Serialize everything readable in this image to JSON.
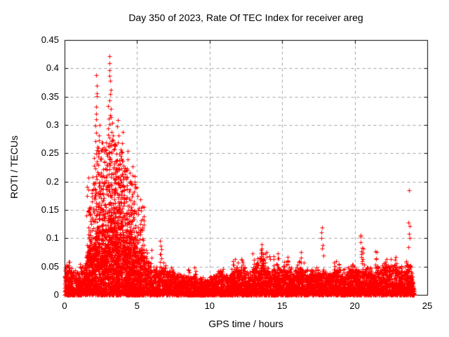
{
  "chart_data": {
    "type": "scatter",
    "title": "Day 350 of 2023, Rate Of TEC Index for receiver areg",
    "xlabel": "GPS time / hours",
    "ylabel": "ROTI / TECUs",
    "xlim": [
      0,
      25
    ],
    "ylim": [
      0,
      0.45
    ],
    "xticks": [
      0,
      5,
      10,
      15,
      20,
      25
    ],
    "xtick_labels": [
      "0",
      "5",
      "10",
      "15",
      "20",
      "25"
    ],
    "yticks": [
      0,
      0.05,
      0.1,
      0.15,
      0.2,
      0.25,
      0.3,
      0.35,
      0.4,
      0.45
    ],
    "ytick_labels": [
      "0",
      "0.05",
      "0.1",
      "0.15",
      "0.2",
      "0.25",
      "0.3",
      "0.35",
      "0.4",
      "0.45"
    ],
    "grid": {
      "show": true,
      "style": "dashed",
      "color": "#a0a0a0"
    },
    "marker": {
      "shape": "plus",
      "color": "#ff0000",
      "size": 7
    },
    "legend": "none",
    "seed": 1234,
    "x_data_end": 24.1,
    "peak_value": 0.42,
    "peak_time": 3.15,
    "density_envelope": [
      [
        0.0,
        0.5,
        0.052,
        160,
        0,
        0
      ],
      [
        0.5,
        1.0,
        0.038,
        150,
        0,
        0
      ],
      [
        1.0,
        1.5,
        0.048,
        150,
        0.06,
        5
      ],
      [
        1.5,
        2.0,
        0.085,
        230,
        0.21,
        30
      ],
      [
        2.0,
        2.5,
        0.1,
        260,
        0.26,
        60
      ],
      [
        2.5,
        3.0,
        0.11,
        260,
        0.27,
        70
      ],
      [
        3.0,
        3.5,
        0.115,
        260,
        0.28,
        80
      ],
      [
        3.5,
        4.0,
        0.115,
        260,
        0.26,
        70
      ],
      [
        4.0,
        4.5,
        0.1,
        260,
        0.23,
        60
      ],
      [
        4.5,
        5.0,
        0.09,
        260,
        0.2,
        50
      ],
      [
        5.0,
        5.5,
        0.075,
        230,
        0.16,
        30
      ],
      [
        5.5,
        6.0,
        0.055,
        170,
        0.08,
        10
      ],
      [
        6.0,
        6.5,
        0.048,
        150,
        0,
        0
      ],
      [
        6.5,
        7.0,
        0.05,
        150,
        0,
        0
      ],
      [
        7.0,
        7.5,
        0.042,
        150,
        0,
        0
      ],
      [
        7.5,
        8.0,
        0.036,
        150,
        0,
        0
      ],
      [
        8.0,
        8.5,
        0.032,
        150,
        0,
        0
      ],
      [
        8.5,
        9.0,
        0.033,
        150,
        0.05,
        4
      ],
      [
        9.0,
        9.5,
        0.028,
        150,
        0,
        0
      ],
      [
        9.5,
        10.0,
        0.027,
        150,
        0,
        0
      ],
      [
        10.0,
        10.5,
        0.032,
        150,
        0,
        0
      ],
      [
        10.5,
        11.0,
        0.038,
        150,
        0.05,
        4
      ],
      [
        11.0,
        11.5,
        0.037,
        150,
        0,
        0
      ],
      [
        11.5,
        12.0,
        0.042,
        150,
        0.06,
        5
      ],
      [
        12.0,
        12.5,
        0.043,
        150,
        0.06,
        5
      ],
      [
        12.5,
        13.0,
        0.038,
        150,
        0,
        0
      ],
      [
        13.0,
        13.5,
        0.048,
        150,
        0.07,
        8
      ],
      [
        13.5,
        14.0,
        0.052,
        150,
        0.08,
        8
      ],
      [
        14.0,
        14.5,
        0.046,
        150,
        0.07,
        5
      ],
      [
        14.5,
        15.0,
        0.042,
        150,
        0.065,
        4
      ],
      [
        15.0,
        15.5,
        0.046,
        150,
        0.065,
        4
      ],
      [
        15.5,
        16.0,
        0.042,
        150,
        0,
        0
      ],
      [
        16.0,
        16.5,
        0.046,
        150,
        0.06,
        4
      ],
      [
        16.5,
        17.0,
        0.04,
        150,
        0,
        0
      ],
      [
        17.0,
        17.5,
        0.042,
        150,
        0.055,
        3
      ],
      [
        17.5,
        18.0,
        0.04,
        150,
        0,
        0
      ],
      [
        18.0,
        18.5,
        0.04,
        150,
        0,
        0
      ],
      [
        18.5,
        19.0,
        0.045,
        150,
        0.06,
        4
      ],
      [
        19.0,
        19.5,
        0.04,
        150,
        0,
        0
      ],
      [
        19.5,
        20.0,
        0.046,
        150,
        0.055,
        3
      ],
      [
        20.0,
        20.5,
        0.046,
        150,
        0,
        0
      ],
      [
        20.5,
        21.0,
        0.042,
        150,
        0,
        0
      ],
      [
        21.0,
        21.5,
        0.04,
        150,
        0.055,
        3
      ],
      [
        21.5,
        22.0,
        0.046,
        150,
        0,
        0
      ],
      [
        22.0,
        22.5,
        0.05,
        150,
        0.065,
        4
      ],
      [
        22.5,
        23.0,
        0.05,
        150,
        0,
        0
      ],
      [
        23.0,
        23.5,
        0.046,
        150,
        0,
        0
      ],
      [
        23.5,
        24.1,
        0.05,
        200,
        0,
        0
      ]
    ],
    "spike_clusters": [
      [
        1.72,
        0.06,
        0.155,
        12
      ],
      [
        1.95,
        0.07,
        0.21,
        10
      ],
      [
        2.2,
        0.07,
        0.385,
        26
      ],
      [
        2.35,
        0.06,
        0.3,
        18
      ],
      [
        2.6,
        0.05,
        0.24,
        14
      ],
      [
        2.8,
        0.06,
        0.27,
        14
      ],
      [
        3.0,
        0.08,
        0.33,
        16
      ],
      [
        3.15,
        0.1,
        0.42,
        30
      ],
      [
        3.3,
        0.06,
        0.3,
        16
      ],
      [
        3.5,
        0.05,
        0.26,
        12
      ],
      [
        3.65,
        0.06,
        0.31,
        18
      ],
      [
        3.8,
        0.05,
        0.24,
        12
      ],
      [
        3.95,
        0.06,
        0.285,
        16
      ],
      [
        4.15,
        0.05,
        0.22,
        12
      ],
      [
        4.3,
        0.05,
        0.255,
        14
      ],
      [
        4.5,
        0.05,
        0.2,
        10
      ],
      [
        4.65,
        0.05,
        0.225,
        12
      ],
      [
        4.85,
        0.04,
        0.21,
        12
      ],
      [
        5.05,
        0.04,
        0.19,
        10
      ],
      [
        5.25,
        0.04,
        0.165,
        8
      ],
      [
        6.62,
        0.05,
        0.092,
        8
      ],
      [
        9.0,
        0.03,
        0.048,
        4
      ],
      [
        11.7,
        0.035,
        0.06,
        5
      ],
      [
        12.2,
        0.04,
        0.065,
        5
      ],
      [
        13.05,
        0.04,
        0.07,
        6
      ],
      [
        13.6,
        0.04,
        0.09,
        12
      ],
      [
        13.75,
        0.04,
        0.075,
        8
      ],
      [
        14.7,
        0.04,
        0.075,
        6
      ],
      [
        15.3,
        0.035,
        0.065,
        5
      ],
      [
        16.25,
        0.04,
        0.075,
        6
      ],
      [
        17.75,
        0.072,
        0.117,
        6
      ],
      [
        18.6,
        0.035,
        0.06,
        5
      ],
      [
        20.45,
        0.055,
        0.105,
        9
      ],
      [
        20.6,
        0.04,
        0.08,
        6
      ],
      [
        21.5,
        0.045,
        0.08,
        7
      ],
      [
        22.8,
        0.04,
        0.065,
        6
      ],
      [
        23.6,
        0.04,
        0.06,
        5
      ],
      [
        23.75,
        0.085,
        0.13,
        5
      ]
    ],
    "lone_points": [
      [
        23.75,
        0.185
      ]
    ]
  }
}
